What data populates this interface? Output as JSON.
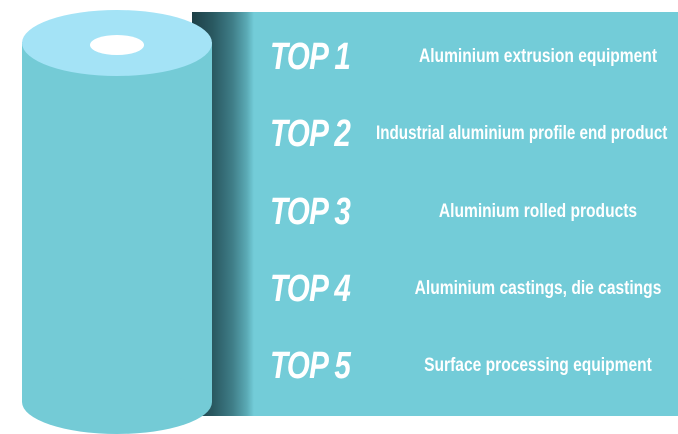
{
  "ranking": {
    "items": [
      {
        "rank": "TOP 1",
        "text": "Aluminium extrusion equipment"
      },
      {
        "rank": "TOP 2",
        "text": "Industrial aluminium profile end product"
      },
      {
        "rank": "TOP 3",
        "text": "Aluminium rolled products"
      },
      {
        "rank": "TOP 4",
        "text": "Aluminium castings, die castings"
      },
      {
        "rank": "TOP 5",
        "text": "Surface processing equipment"
      }
    ]
  },
  "colors": {
    "sheet": "#73ccd8",
    "roll_side": "#74cbd6",
    "roll_top": "#a4e3f6",
    "shadow": "#1e3f46",
    "text": "#ffffff"
  }
}
